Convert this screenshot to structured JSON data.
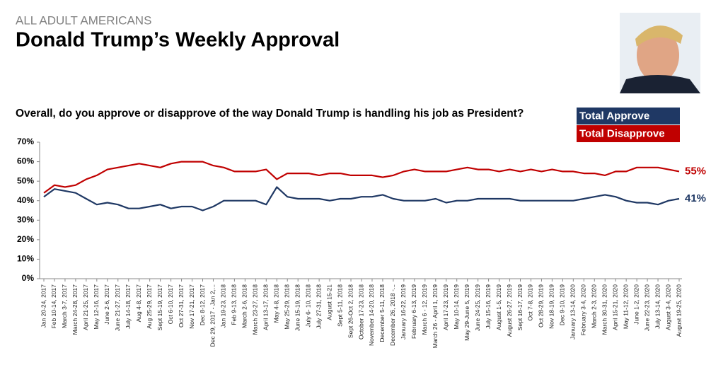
{
  "chart_data": {
    "type": "line",
    "kicker": "ALL ADULT AMERICANS",
    "title": "Donald Trump’s Weekly Approval",
    "subtitle": "Overall, do you approve or disapprove of the way Donald Trump is handling his job as President?",
    "categories": [
      "Jan 20-24, 2017",
      "Feb 10-14, 2017",
      "March 3-7, 2017",
      "March 24-28, 2017",
      "April 21-25, 2017",
      "May 12-16, 2017",
      "June 2-6, 2017",
      "June 21-27, 2017",
      "July 14-18, 2017",
      "Aug 4-8, 2017",
      "Aug 25-29, 2017",
      "Sept 15-19, 2017",
      "Oct 6-10, 2017",
      "Oct 27-31, 2017",
      "Nov 17-21, 2017",
      "Dec 8-12, 2017",
      "Dec 29, 2017 - Jan 2,...",
      "Jan 19-23, 2018",
      "Feb 9-13, 2018",
      "March 2-6, 2018",
      "March 23-27, 2018",
      "April 13-17, 2018",
      "May 4-8, 2018",
      "May 25-29, 2018",
      "June 15-19, 2018",
      "July 6- 10, 2018",
      "July 27-31, 2018",
      "August 15-21",
      "Sept 5-11, 2018",
      "Sept 26-Oct 2, 2018",
      "October 17-23, 2018",
      "November 14-20, 2018",
      "December 5-11, 2018",
      "December 26, 2018 -...",
      "January 16-22, 2019",
      "February 6-13, 2019",
      "March 6 - 12, 2019",
      "March 26 - April 1, 2019",
      "April 17-23, 2019",
      "May 10-14, 2019",
      "May 29-June 5, 2019",
      "June 24-25, 2019",
      "July 15-16, 2019",
      "August 1-5, 2019",
      "August 26-27, 2019",
      "Sept 16-17, 2019",
      "Oct 7-8, 2019",
      "Oct 28-29, 2019",
      "Nov 18-19, 2019",
      "Dec 9-10, 2019",
      "January 13-14, 2020",
      "February 3-4, 2020",
      "March 2-3, 2020",
      "March 30-31, 2020",
      "April 15-21, 2020",
      "May 11-12, 2020",
      "June 1-2, 2020",
      "June 22-23, 2020",
      "July 13-14, 2020",
      "August 3-4, 2020",
      "August 19-25, 2020"
    ],
    "series": [
      {
        "name": "Total Approve",
        "color": "#1f3864",
        "values": [
          42,
          46,
          45,
          44,
          41,
          38,
          39,
          38,
          36,
          36,
          37,
          38,
          36,
          37,
          37,
          35,
          37,
          40,
          40,
          40,
          40,
          38,
          47,
          42,
          41,
          41,
          41,
          40,
          41,
          41,
          42,
          42,
          43,
          41,
          40,
          40,
          40,
          41,
          39,
          40,
          40,
          41,
          41,
          41,
          41,
          40,
          40,
          40,
          40,
          40,
          40,
          41,
          42,
          43,
          42,
          40,
          39,
          39,
          38,
          40,
          41
        ],
        "value_labels": [
          null,
          null,
          null,
          null,
          null,
          null,
          null,
          null,
          null,
          null,
          null,
          null,
          null,
          null,
          null,
          null,
          null,
          null,
          null,
          null,
          null,
          null,
          null,
          null,
          null,
          null,
          null,
          null,
          null,
          null,
          null,
          null,
          null,
          null,
          null,
          null,
          null,
          null,
          null,
          null,
          null,
          null,
          null,
          null,
          null,
          null,
          null,
          null,
          null,
          null,
          null,
          null,
          null,
          null,
          null,
          null,
          null,
          null,
          null,
          null,
          "41%"
        ]
      },
      {
        "name": "Total Disapprove",
        "color": "#c00000",
        "values": [
          44,
          48,
          47,
          48,
          51,
          53,
          56,
          57,
          58,
          59,
          58,
          57,
          59,
          60,
          60,
          60,
          58,
          57,
          55,
          55,
          55,
          56,
          51,
          54,
          54,
          54,
          53,
          54,
          54,
          53,
          53,
          53,
          52,
          53,
          55,
          56,
          55,
          55,
          55,
          56,
          57,
          56,
          56,
          55,
          56,
          55,
          56,
          55,
          56,
          55,
          55,
          54,
          54,
          53,
          55,
          55,
          57,
          57,
          57,
          56,
          55
        ],
        "value_labels": [
          null,
          null,
          null,
          null,
          null,
          null,
          null,
          null,
          null,
          null,
          null,
          null,
          null,
          null,
          null,
          null,
          null,
          null,
          null,
          null,
          null,
          null,
          null,
          null,
          null,
          null,
          null,
          null,
          null,
          null,
          null,
          null,
          null,
          null,
          null,
          null,
          null,
          null,
          null,
          null,
          null,
          null,
          null,
          null,
          null,
          null,
          null,
          null,
          null,
          null,
          null,
          null,
          null,
          null,
          null,
          null,
          null,
          null,
          null,
          null,
          "55%"
        ]
      }
    ],
    "ylim": [
      0,
      70
    ],
    "yticks": [
      {
        "value": 0,
        "label": "0%"
      },
      {
        "value": 10,
        "label": "10%"
      },
      {
        "value": 20,
        "label": "20%"
      },
      {
        "value": 30,
        "label": "30%"
      },
      {
        "value": 40,
        "label": "40%"
      },
      {
        "value": 50,
        "label": "50%"
      },
      {
        "value": 60,
        "label": "60%"
      },
      {
        "value": 70,
        "label": "70%"
      }
    ],
    "grid": false
  }
}
